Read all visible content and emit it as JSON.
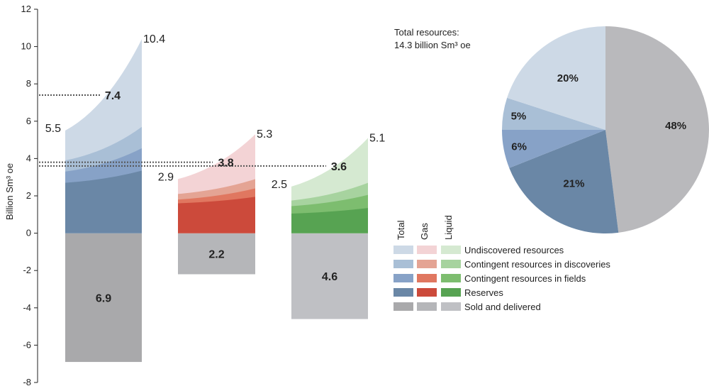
{
  "chart_data": [
    {
      "type": "area",
      "ylabel": "Billion Sm³ oe",
      "ylim": [
        -8,
        12
      ],
      "yticks": [
        12,
        10,
        8,
        6,
        4,
        2,
        0,
        -2,
        -4,
        -6,
        -8
      ],
      "grid": false,
      "groups": [
        {
          "name": "Total",
          "sold_and_delivered": 6.9,
          "sold_label": "6.9",
          "start": {
            "Reserves": 2.7,
            "Contingent resources in fields": 3.3,
            "Contingent resources in discoveries": 3.9,
            "Undiscovered resources": 5.5
          },
          "end": {
            "Reserves": 3.35,
            "Contingent resources in fields": 4.55,
            "Contingent resources in discoveries": 5.7,
            "Undiscovered resources": 10.4
          },
          "start_label": "5.5",
          "end_label": "10.4",
          "expected_value": 7.4,
          "expected_label": "7.4"
        },
        {
          "name": "Gas",
          "sold_and_delivered": 2.2,
          "sold_label": "2.2",
          "start": {
            "Reserves": 1.6,
            "Contingent resources in fields": 1.8,
            "Contingent resources in discoveries": 2.1,
            "Undiscovered resources": 2.9
          },
          "end": {
            "Reserves": 1.95,
            "Contingent resources in fields": 2.4,
            "Contingent resources in discoveries": 2.9,
            "Undiscovered resources": 5.3
          },
          "start_label": "2.9",
          "end_label": "5.3",
          "expected_value": 3.8,
          "expected_label": "3.8"
        },
        {
          "name": "Liquid",
          "sold_and_delivered": 4.6,
          "sold_label": "4.6",
          "start": {
            "Reserves": 1.05,
            "Contingent resources in fields": 1.45,
            "Contingent resources in discoveries": 1.75,
            "Undiscovered resources": 2.5
          },
          "end": {
            "Reserves": 1.35,
            "Contingent resources in fields": 2.05,
            "Contingent resources in discoveries": 2.7,
            "Undiscovered resources": 5.1
          },
          "start_label": "2.5",
          "end_label": "5.1",
          "expected_value": 3.6,
          "expected_label": "3.6"
        }
      ],
      "legend": {
        "column_headers": [
          "Total",
          "Gas",
          "Liquid"
        ],
        "entries": [
          {
            "label": "Undiscovered resources",
            "colors": [
              "#cdd9e6",
              "#f3d3d5",
              "#d5e9d1"
            ]
          },
          {
            "label": "Contingent resources in discoveries",
            "colors": [
              "#a9bfd6",
              "#e4a494",
              "#a7d39f"
            ]
          },
          {
            "label": "Contingent resources in fields",
            "colors": [
              "#87a2c7",
              "#e07760",
              "#7dbd6f"
            ]
          },
          {
            "label": "Reserves",
            "colors": [
              "#6a87a6",
              "#cc4a3b",
              "#57a352"
            ]
          },
          {
            "label": "Sold and delivered",
            "colors": [
              "#a9a9ab",
              "#b5b6b9",
              "#bfc0c4"
            ]
          }
        ]
      }
    },
    {
      "type": "pie",
      "title_line1": "Total resources:",
      "title_line2": "14.3 billion  Sm³ oe",
      "slices": [
        {
          "label": "48%",
          "value": 48,
          "color": "#b9b9bc"
        },
        {
          "label": "21%",
          "value": 21,
          "color": "#6a87a6"
        },
        {
          "label": "6%",
          "value": 6,
          "color": "#87a2c7"
        },
        {
          "label": "5%",
          "value": 5,
          "color": "#a9bfd6"
        },
        {
          "label": "20%",
          "value": 20,
          "color": "#cdd9e6"
        }
      ]
    }
  ]
}
